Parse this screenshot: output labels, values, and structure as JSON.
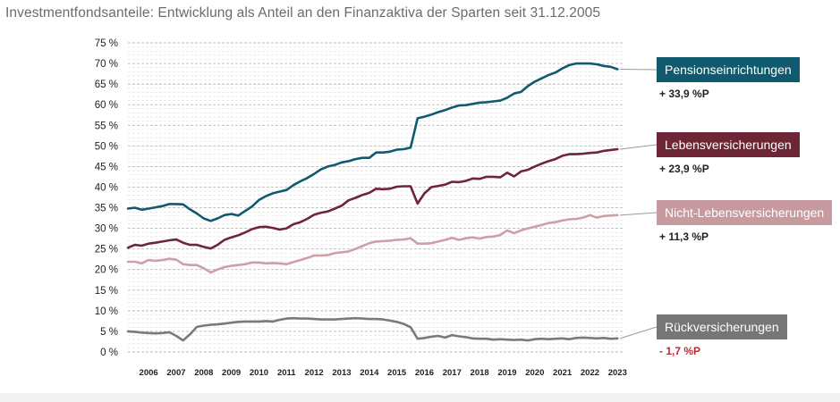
{
  "title": "Investmentfondsanteile: Entwicklung als Anteil an den Finanzaktiva der Sparten seit 31.12.2005",
  "chart_data": {
    "type": "line",
    "title": "Investmentfondsanteile: Entwicklung als Anteil an den Finanzaktiva der Sparten seit 31.12.2005",
    "xlabel": "",
    "ylabel": "",
    "ylim": [
      0,
      75
    ],
    "xlim": [
      2005.75,
      2023.75
    ],
    "y_ticks": [
      "0 %",
      "5 %",
      "10 %",
      "15 %",
      "20 %",
      "25 %",
      "30 %",
      "35 %",
      "40 %",
      "45 %",
      "50 %",
      "55 %",
      "60 %",
      "65 %",
      "70 %",
      "75 %"
    ],
    "x_ticks": [
      "2006",
      "2007",
      "2008",
      "2009",
      "2010",
      "2011",
      "2012",
      "2013",
      "2014",
      "2015",
      "2016",
      "2017",
      "2018",
      "2019",
      "2020",
      "2021",
      "2022",
      "2023"
    ],
    "grid": true,
    "series": [
      {
        "name": "Pensionseinrichtungen",
        "color": "#0f5a6e",
        "label_color": "#0f5a6e",
        "change": "+ 33,9 %P",
        "x": [
          2005.75,
          2006.0,
          2006.25,
          2006.5,
          2006.75,
          2007.0,
          2007.25,
          2007.5,
          2007.75,
          2008.0,
          2008.25,
          2008.5,
          2008.75,
          2009.0,
          2009.25,
          2009.5,
          2009.75,
          2010.0,
          2010.25,
          2010.5,
          2010.75,
          2011.0,
          2011.25,
          2011.5,
          2011.75,
          2012.0,
          2012.25,
          2012.5,
          2012.75,
          2013.0,
          2013.25,
          2013.5,
          2013.75,
          2014.0,
          2014.25,
          2014.5,
          2014.75,
          2015.0,
          2015.25,
          2015.5,
          2015.75,
          2016.0,
          2016.25,
          2016.5,
          2016.75,
          2017.0,
          2017.25,
          2017.5,
          2017.75,
          2018.0,
          2018.25,
          2018.5,
          2018.75,
          2019.0,
          2019.25,
          2019.5,
          2019.75,
          2020.0,
          2020.25,
          2020.5,
          2020.75,
          2021.0,
          2021.25,
          2021.5,
          2021.75,
          2022.0,
          2022.25,
          2022.5,
          2022.75,
          2023.0,
          2023.25,
          2023.5
        ],
        "values": [
          34.8,
          35,
          34.5,
          34.8,
          35.1,
          35.4,
          35.9,
          35.9,
          35.8,
          34.6,
          33.6,
          32.4,
          31.8,
          32.4,
          33.2,
          33.5,
          33.1,
          34.2,
          35.3,
          36.9,
          37.8,
          38.5,
          38.9,
          39.3,
          40.5,
          41.4,
          42.2,
          43.2,
          44.3,
          45,
          45.4,
          46,
          46.3,
          46.8,
          47.1,
          47.1,
          48.4,
          48.4,
          48.6,
          49.1,
          49.2,
          49.6,
          56.7,
          57.1,
          57.6,
          58.2,
          58.7,
          59.3,
          59.8,
          59.9,
          60.2,
          60.5,
          60.6,
          60.8,
          61,
          61.7,
          62.7,
          63.1,
          64.5,
          65.6,
          66.4,
          67.2,
          67.8,
          68.8,
          69.6,
          70,
          70,
          70,
          69.8,
          69.4,
          69.2,
          68.6
        ]
      },
      {
        "name": "Lebensversicherungen",
        "color": "#6e2637",
        "label_color": "#6e2637",
        "change": "+ 23,9 %P",
        "x": [
          2005.75,
          2006.0,
          2006.25,
          2006.5,
          2006.75,
          2007.0,
          2007.25,
          2007.5,
          2007.75,
          2008.0,
          2008.25,
          2008.5,
          2008.75,
          2009.0,
          2009.25,
          2009.5,
          2009.75,
          2010.0,
          2010.25,
          2010.5,
          2010.75,
          2011.0,
          2011.25,
          2011.5,
          2011.75,
          2012.0,
          2012.25,
          2012.5,
          2012.75,
          2013.0,
          2013.25,
          2013.5,
          2013.75,
          2014.0,
          2014.25,
          2014.5,
          2014.75,
          2015.0,
          2015.25,
          2015.5,
          2015.75,
          2016.0,
          2016.25,
          2016.5,
          2016.75,
          2017.0,
          2017.25,
          2017.5,
          2017.75,
          2018.0,
          2018.25,
          2018.5,
          2018.75,
          2019.0,
          2019.25,
          2019.5,
          2019.75,
          2020.0,
          2020.25,
          2020.5,
          2020.75,
          2021.0,
          2021.25,
          2021.5,
          2021.75,
          2022.0,
          2022.25,
          2022.5,
          2022.75,
          2023.0,
          2023.25,
          2023.5
        ],
        "values": [
          25.3,
          26,
          25.8,
          26.3,
          26.5,
          26.8,
          27.1,
          27.3,
          26.5,
          26,
          26,
          25.5,
          25.1,
          26,
          27.2,
          27.8,
          28.3,
          29,
          29.8,
          30.3,
          30.4,
          30.1,
          29.7,
          30,
          31,
          31.5,
          32.3,
          33.3,
          33.8,
          34.1,
          34.8,
          35.5,
          36.8,
          37.4,
          38.1,
          38.6,
          39.6,
          39.5,
          39.6,
          40.1,
          40.2,
          40.2,
          36,
          38.5,
          40,
          40.3,
          40.6,
          41.3,
          41.2,
          41.5,
          42.1,
          42,
          42.5,
          42.5,
          42.4,
          43.5,
          42.6,
          43.8,
          44.2,
          45,
          45.7,
          46.3,
          46.8,
          47.6,
          48,
          48,
          48.1,
          48.3,
          48.4,
          48.8,
          49,
          49.2
        ]
      },
      {
        "name": "Nicht-Lebensversicherungen",
        "color": "#cda0a6",
        "label_color": "#c79a9f",
        "change": "+ 11,3 %P",
        "x": [
          2005.75,
          2006.0,
          2006.25,
          2006.5,
          2006.75,
          2007.0,
          2007.25,
          2007.5,
          2007.75,
          2008.0,
          2008.25,
          2008.5,
          2008.75,
          2009.0,
          2009.25,
          2009.5,
          2009.75,
          2010.0,
          2010.25,
          2010.5,
          2010.75,
          2011.0,
          2011.25,
          2011.5,
          2011.75,
          2012.0,
          2012.25,
          2012.5,
          2012.75,
          2013.0,
          2013.25,
          2013.5,
          2013.75,
          2014.0,
          2014.25,
          2014.5,
          2014.75,
          2015.0,
          2015.25,
          2015.5,
          2015.75,
          2016.0,
          2016.25,
          2016.5,
          2016.75,
          2017.0,
          2017.25,
          2017.5,
          2017.75,
          2018.0,
          2018.25,
          2018.5,
          2018.75,
          2019.0,
          2019.25,
          2019.5,
          2019.75,
          2020.0,
          2020.25,
          2020.5,
          2020.75,
          2021.0,
          2021.25,
          2021.5,
          2021.75,
          2022.0,
          2022.25,
          2022.5,
          2022.75,
          2023.0,
          2023.25,
          2023.5
        ],
        "values": [
          21.9,
          21.9,
          21.5,
          22.3,
          22.1,
          22.3,
          22.6,
          22.4,
          21.3,
          21.1,
          21.1,
          20.3,
          19.3,
          20,
          20.6,
          20.9,
          21.1,
          21.3,
          21.7,
          21.7,
          21.5,
          21.6,
          21.5,
          21.3,
          21.8,
          22.3,
          22.8,
          23.4,
          23.4,
          23.5,
          24,
          24.2,
          24.4,
          25,
          25.7,
          26.4,
          26.8,
          26.9,
          27,
          27.2,
          27.3,
          27.6,
          26.3,
          26.3,
          26.4,
          26.8,
          27.2,
          27.7,
          27.2,
          27.6,
          27.8,
          27.5,
          27.9,
          28,
          28.4,
          29.5,
          28.8,
          29.5,
          30,
          30.4,
          30.8,
          31.3,
          31.5,
          31.9,
          32.2,
          32.3,
          32.6,
          33.2,
          32.6,
          33,
          33.1,
          33.2
        ]
      },
      {
        "name": "Rückversicherungen",
        "color": "#7a7a7a",
        "label_color": "#767676",
        "change": "- 1,7 %P",
        "x": [
          2005.75,
          2006.0,
          2006.25,
          2006.5,
          2006.75,
          2007.0,
          2007.25,
          2007.5,
          2007.75,
          2008.0,
          2008.25,
          2008.5,
          2008.75,
          2009.0,
          2009.25,
          2009.5,
          2009.75,
          2010.0,
          2010.25,
          2010.5,
          2010.75,
          2011.0,
          2011.25,
          2011.5,
          2011.75,
          2012.0,
          2012.25,
          2012.5,
          2012.75,
          2013.0,
          2013.25,
          2013.5,
          2013.75,
          2014.0,
          2014.25,
          2014.5,
          2014.75,
          2015.0,
          2015.25,
          2015.5,
          2015.75,
          2016.0,
          2016.25,
          2016.5,
          2016.75,
          2017.0,
          2017.25,
          2017.5,
          2017.75,
          2018.0,
          2018.25,
          2018.5,
          2018.75,
          2019.0,
          2019.25,
          2019.5,
          2019.75,
          2020.0,
          2020.25,
          2020.5,
          2020.75,
          2021.0,
          2021.25,
          2021.5,
          2021.75,
          2022.0,
          2022.25,
          2022.5,
          2022.75,
          2023.0,
          2023.25,
          2023.5
        ],
        "values": [
          5,
          4.9,
          4.7,
          4.6,
          4.5,
          4.6,
          4.8,
          3.9,
          2.8,
          4.3,
          6.1,
          6.4,
          6.6,
          6.7,
          6.9,
          7.1,
          7.3,
          7.4,
          7.4,
          7.4,
          7.5,
          7.4,
          7.8,
          8.1,
          8.2,
          8.1,
          8.1,
          8,
          7.9,
          7.9,
          7.9,
          8,
          8.1,
          8.2,
          8.1,
          8,
          8,
          7.9,
          7.6,
          7.3,
          6.8,
          6,
          3.2,
          3.4,
          3.7,
          3.9,
          3.5,
          4.1,
          3.8,
          3.6,
          3.3,
          3.2,
          3.2,
          3,
          3.1,
          3,
          2.9,
          3,
          2.8,
          3.1,
          3.2,
          3.1,
          3.2,
          3.3,
          3.1,
          3.4,
          3.5,
          3.4,
          3.3,
          3.4,
          3.2,
          3.3
        ]
      }
    ]
  }
}
